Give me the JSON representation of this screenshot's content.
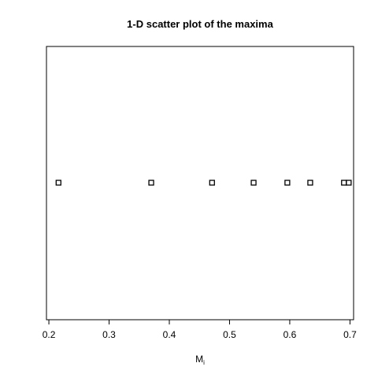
{
  "chart_data": {
    "type": "scatter",
    "title": "1-D scatter plot of the maxima",
    "xlabel": "M",
    "xlabel_subscript": "i",
    "ylabel": "",
    "xlim": [
      0.196,
      0.706
    ],
    "x_ticks": [
      0.2,
      0.3,
      0.4,
      0.5,
      0.6,
      0.7
    ],
    "x_tick_labels": [
      "0.2",
      "0.3",
      "0.4",
      "0.5",
      "0.6",
      "0.7"
    ],
    "x": [
      0.216,
      0.37,
      0.471,
      0.54,
      0.596,
      0.634,
      0.69,
      0.698
    ],
    "y": [
      1,
      1,
      1,
      1,
      1,
      1,
      1,
      1
    ],
    "marker": "open-square",
    "grid": false,
    "legend": "none"
  }
}
